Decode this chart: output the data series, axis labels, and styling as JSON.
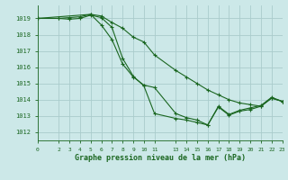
{
  "title": "Graphe pression niveau de la mer (hPa)",
  "bg_color": "#cce8e8",
  "grid_color": "#aacccc",
  "line_color": "#1a6620",
  "xlim": [
    0,
    23
  ],
  "ylim": [
    1011.5,
    1019.8
  ],
  "xticks": [
    0,
    2,
    3,
    4,
    5,
    6,
    7,
    8,
    9,
    10,
    11,
    13,
    14,
    15,
    16,
    17,
    18,
    19,
    20,
    21,
    22,
    23
  ],
  "yticks": [
    1012,
    1013,
    1014,
    1015,
    1016,
    1017,
    1018,
    1019
  ],
  "line1_x": [
    0,
    2,
    3,
    4,
    5,
    6,
    7,
    8,
    9,
    10,
    11,
    13,
    14,
    15,
    16,
    17,
    18,
    19,
    20,
    21,
    22,
    23
  ],
  "line1_y": [
    1019.0,
    1019.0,
    1019.05,
    1019.1,
    1019.25,
    1019.15,
    1018.75,
    1018.4,
    1017.85,
    1017.55,
    1016.75,
    1015.8,
    1015.4,
    1015.0,
    1014.6,
    1014.3,
    1014.0,
    1013.8,
    1013.7,
    1013.6,
    1014.1,
    1013.9
  ],
  "line2_x": [
    0,
    5,
    6,
    7,
    8,
    9,
    10,
    11,
    13,
    14,
    15,
    16,
    17,
    18,
    19,
    20,
    21,
    22,
    23
  ],
  "line2_y": [
    1019.0,
    1019.25,
    1018.6,
    1017.7,
    1016.2,
    1015.4,
    1014.9,
    1014.75,
    1013.15,
    1012.9,
    1012.75,
    1012.45,
    1013.6,
    1013.1,
    1013.35,
    1013.5,
    1013.65,
    1014.15,
    1013.9
  ],
  "line3_x": [
    0,
    2,
    3,
    4,
    5,
    6,
    7,
    8,
    9,
    10,
    11,
    13,
    14,
    15,
    16,
    17,
    18,
    19,
    20,
    21,
    22,
    23
  ],
  "line3_y": [
    1019.0,
    1019.0,
    1018.95,
    1019.0,
    1019.2,
    1019.05,
    1018.45,
    1016.55,
    1015.45,
    1014.85,
    1013.15,
    1012.85,
    1012.75,
    1012.6,
    1012.45,
    1013.55,
    1013.05,
    1013.3,
    1013.4,
    1013.6,
    1014.1,
    1013.9
  ]
}
